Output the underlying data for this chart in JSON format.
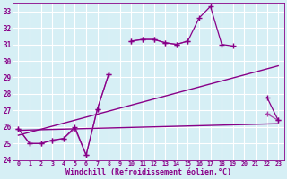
{
  "xlabel": "Windchill (Refroidissement éolien,°C)",
  "background_color": "#d6eff5",
  "grid_color": "#b8dde8",
  "xlim": [
    -0.5,
    23.5
  ],
  "ylim": [
    24,
    33.5
  ],
  "ytick_labels": [
    "24",
    "25",
    "26",
    "27",
    "28",
    "29",
    "30",
    "31",
    "32",
    "33"
  ],
  "ytick_vals": [
    24,
    25,
    26,
    27,
    28,
    29,
    30,
    31,
    32,
    33
  ],
  "xtick_vals": [
    0,
    1,
    2,
    3,
    4,
    5,
    6,
    7,
    8,
    9,
    10,
    11,
    12,
    13,
    14,
    15,
    16,
    17,
    18,
    19,
    20,
    21,
    22,
    23
  ],
  "color_dark": "#880088",
  "color_mid": "#aa44aa",
  "series1_x": [
    0,
    1,
    2,
    3,
    4,
    5,
    6,
    7,
    8,
    9,
    10,
    11,
    12,
    13,
    14,
    15,
    16,
    17,
    18,
    19,
    20,
    21,
    22,
    23
  ],
  "series1_y": [
    25.9,
    25.0,
    25.0,
    25.2,
    25.3,
    25.9,
    24.3,
    27.1,
    29.2,
    null,
    31.2,
    31.3,
    31.3,
    31.1,
    31.0,
    31.2,
    null,
    null,
    null,
    null,
    null,
    null,
    26.8,
    26.4
  ],
  "series2_x": [
    0,
    1,
    2,
    3,
    4,
    5,
    6,
    7,
    8,
    9,
    10,
    11,
    12,
    13,
    14,
    15,
    16,
    17,
    18,
    19,
    20,
    21,
    22,
    23
  ],
  "series2_y": [
    25.9,
    25.0,
    25.0,
    25.2,
    25.3,
    26.0,
    24.3,
    27.1,
    29.2,
    null,
    31.2,
    31.3,
    31.3,
    31.1,
    31.0,
    31.2,
    32.6,
    33.3,
    31.0,
    30.9,
    null,
    null,
    27.8,
    26.4
  ],
  "trend1_x": [
    0,
    23
  ],
  "trend1_y": [
    25.8,
    26.2
  ],
  "trend2_x": [
    0,
    23
  ],
  "trend2_y": [
    25.5,
    29.7
  ]
}
